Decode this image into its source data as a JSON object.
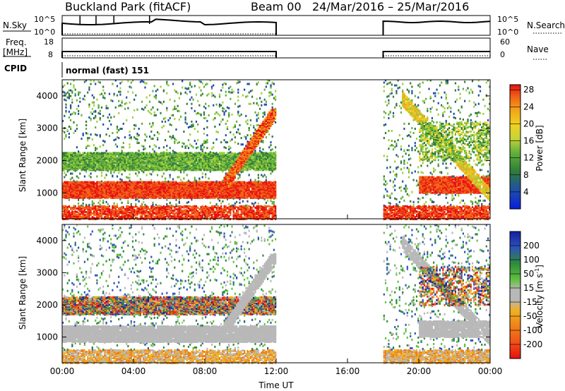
{
  "header": {
    "station": "Buckland Park (fitACF)",
    "beam": "Beam 00",
    "date_range": "24/Mar/2016 – 25/Mar/2016"
  },
  "sky_panel": {
    "left_label": "N.Sky",
    "right_label": "N.Search",
    "left_ticks": [
      "10^5",
      "10^0"
    ],
    "right_ticks": [
      "10^5",
      "10^0"
    ]
  },
  "freq_panel": {
    "left_label_1": "Freq.",
    "left_label_2": "[MHz]",
    "right_label": "Nave",
    "left_ticks": [
      "18",
      "8"
    ],
    "right_ticks": [
      "60",
      "0"
    ]
  },
  "cpid": {
    "label": "CPID",
    "text": "normal (fast) 151"
  },
  "chart_data": [
    {
      "type": "heatmap",
      "name": "power",
      "ylabel": "Slant Range [km]",
      "yticks": [
        "1000",
        "2000",
        "3000",
        "4000"
      ],
      "ylim": [
        200,
        4500
      ],
      "xlabel": "Time UT",
      "xticks": [
        "00:00",
        "04:00",
        "08:00",
        "12:00",
        "16:00",
        "20:00",
        "00:00"
      ],
      "colorbar_label": "Power [dB]",
      "colorbar_ticks": [
        "4",
        "8",
        "12",
        "16",
        "20",
        "24",
        "28"
      ],
      "colors": [
        "#0a1edc",
        "#1f4ea8",
        "#2f7b3a",
        "#5fb03a",
        "#9fcf3a",
        "#f0d020",
        "#f3a21a",
        "#f06418",
        "#e81010"
      ],
      "data_gaps": [
        [
          12.0,
          18.0
        ]
      ]
    },
    {
      "type": "heatmap",
      "name": "velocity",
      "ylabel": "Slant Range [km]",
      "yticks": [
        "1000",
        "2000",
        "3000",
        "4000"
      ],
      "ylim": [
        200,
        4500
      ],
      "xlabel": "Time UT",
      "xticks": [
        "00:00",
        "04:00",
        "08:00",
        "12:00",
        "16:00",
        "20:00",
        "00:00"
      ],
      "colorbar_label": "Velocity [m s^-1]",
      "colorbar_ticks": [
        "200",
        "100",
        "50",
        "15",
        "-15",
        "-50",
        "-100",
        "-200"
      ],
      "colors": [
        "#1020a0",
        "#2f52b8",
        "#2f8a3c",
        "#5fc03c",
        "#b8b8b8",
        "#f0b020",
        "#f08018",
        "#f05018",
        "#e81010"
      ],
      "data_gaps": [
        [
          12.0,
          18.0
        ]
      ]
    }
  ]
}
